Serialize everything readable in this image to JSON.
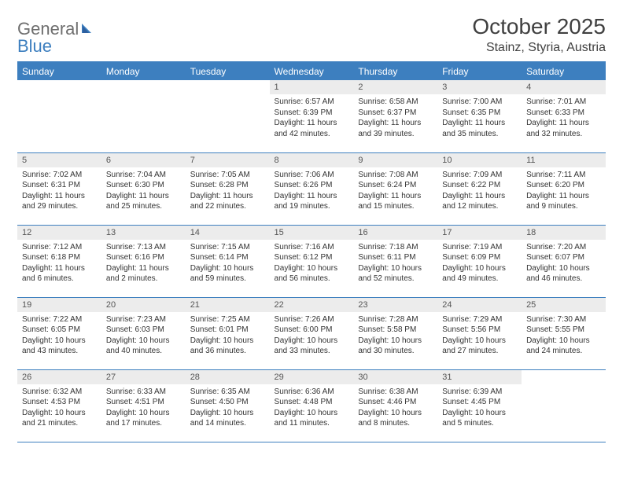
{
  "logo": {
    "word1": "General",
    "word2": "Blue",
    "text_color": "#6e6e6e",
    "accent_color": "#3d7fbf"
  },
  "title": "October 2025",
  "location": "Stainz, Styria, Austria",
  "colors": {
    "header_bg": "#3d7fbf",
    "header_text": "#ffffff",
    "daynum_bg": "#ececec",
    "rule": "#3d7fbf",
    "body_text": "#333333"
  },
  "day_headers": [
    "Sunday",
    "Monday",
    "Tuesday",
    "Wednesday",
    "Thursday",
    "Friday",
    "Saturday"
  ],
  "weeks": [
    [
      {
        "n": "",
        "sr": "",
        "ss": "",
        "dl": ""
      },
      {
        "n": "",
        "sr": "",
        "ss": "",
        "dl": ""
      },
      {
        "n": "",
        "sr": "",
        "ss": "",
        "dl": ""
      },
      {
        "n": "1",
        "sr": "Sunrise: 6:57 AM",
        "ss": "Sunset: 6:39 PM",
        "dl": "Daylight: 11 hours and 42 minutes."
      },
      {
        "n": "2",
        "sr": "Sunrise: 6:58 AM",
        "ss": "Sunset: 6:37 PM",
        "dl": "Daylight: 11 hours and 39 minutes."
      },
      {
        "n": "3",
        "sr": "Sunrise: 7:00 AM",
        "ss": "Sunset: 6:35 PM",
        "dl": "Daylight: 11 hours and 35 minutes."
      },
      {
        "n": "4",
        "sr": "Sunrise: 7:01 AM",
        "ss": "Sunset: 6:33 PM",
        "dl": "Daylight: 11 hours and 32 minutes."
      }
    ],
    [
      {
        "n": "5",
        "sr": "Sunrise: 7:02 AM",
        "ss": "Sunset: 6:31 PM",
        "dl": "Daylight: 11 hours and 29 minutes."
      },
      {
        "n": "6",
        "sr": "Sunrise: 7:04 AM",
        "ss": "Sunset: 6:30 PM",
        "dl": "Daylight: 11 hours and 25 minutes."
      },
      {
        "n": "7",
        "sr": "Sunrise: 7:05 AM",
        "ss": "Sunset: 6:28 PM",
        "dl": "Daylight: 11 hours and 22 minutes."
      },
      {
        "n": "8",
        "sr": "Sunrise: 7:06 AM",
        "ss": "Sunset: 6:26 PM",
        "dl": "Daylight: 11 hours and 19 minutes."
      },
      {
        "n": "9",
        "sr": "Sunrise: 7:08 AM",
        "ss": "Sunset: 6:24 PM",
        "dl": "Daylight: 11 hours and 15 minutes."
      },
      {
        "n": "10",
        "sr": "Sunrise: 7:09 AM",
        "ss": "Sunset: 6:22 PM",
        "dl": "Daylight: 11 hours and 12 minutes."
      },
      {
        "n": "11",
        "sr": "Sunrise: 7:11 AM",
        "ss": "Sunset: 6:20 PM",
        "dl": "Daylight: 11 hours and 9 minutes."
      }
    ],
    [
      {
        "n": "12",
        "sr": "Sunrise: 7:12 AM",
        "ss": "Sunset: 6:18 PM",
        "dl": "Daylight: 11 hours and 6 minutes."
      },
      {
        "n": "13",
        "sr": "Sunrise: 7:13 AM",
        "ss": "Sunset: 6:16 PM",
        "dl": "Daylight: 11 hours and 2 minutes."
      },
      {
        "n": "14",
        "sr": "Sunrise: 7:15 AM",
        "ss": "Sunset: 6:14 PM",
        "dl": "Daylight: 10 hours and 59 minutes."
      },
      {
        "n": "15",
        "sr": "Sunrise: 7:16 AM",
        "ss": "Sunset: 6:12 PM",
        "dl": "Daylight: 10 hours and 56 minutes."
      },
      {
        "n": "16",
        "sr": "Sunrise: 7:18 AM",
        "ss": "Sunset: 6:11 PM",
        "dl": "Daylight: 10 hours and 52 minutes."
      },
      {
        "n": "17",
        "sr": "Sunrise: 7:19 AM",
        "ss": "Sunset: 6:09 PM",
        "dl": "Daylight: 10 hours and 49 minutes."
      },
      {
        "n": "18",
        "sr": "Sunrise: 7:20 AM",
        "ss": "Sunset: 6:07 PM",
        "dl": "Daylight: 10 hours and 46 minutes."
      }
    ],
    [
      {
        "n": "19",
        "sr": "Sunrise: 7:22 AM",
        "ss": "Sunset: 6:05 PM",
        "dl": "Daylight: 10 hours and 43 minutes."
      },
      {
        "n": "20",
        "sr": "Sunrise: 7:23 AM",
        "ss": "Sunset: 6:03 PM",
        "dl": "Daylight: 10 hours and 40 minutes."
      },
      {
        "n": "21",
        "sr": "Sunrise: 7:25 AM",
        "ss": "Sunset: 6:01 PM",
        "dl": "Daylight: 10 hours and 36 minutes."
      },
      {
        "n": "22",
        "sr": "Sunrise: 7:26 AM",
        "ss": "Sunset: 6:00 PM",
        "dl": "Daylight: 10 hours and 33 minutes."
      },
      {
        "n": "23",
        "sr": "Sunrise: 7:28 AM",
        "ss": "Sunset: 5:58 PM",
        "dl": "Daylight: 10 hours and 30 minutes."
      },
      {
        "n": "24",
        "sr": "Sunrise: 7:29 AM",
        "ss": "Sunset: 5:56 PM",
        "dl": "Daylight: 10 hours and 27 minutes."
      },
      {
        "n": "25",
        "sr": "Sunrise: 7:30 AM",
        "ss": "Sunset: 5:55 PM",
        "dl": "Daylight: 10 hours and 24 minutes."
      }
    ],
    [
      {
        "n": "26",
        "sr": "Sunrise: 6:32 AM",
        "ss": "Sunset: 4:53 PM",
        "dl": "Daylight: 10 hours and 21 minutes."
      },
      {
        "n": "27",
        "sr": "Sunrise: 6:33 AM",
        "ss": "Sunset: 4:51 PM",
        "dl": "Daylight: 10 hours and 17 minutes."
      },
      {
        "n": "28",
        "sr": "Sunrise: 6:35 AM",
        "ss": "Sunset: 4:50 PM",
        "dl": "Daylight: 10 hours and 14 minutes."
      },
      {
        "n": "29",
        "sr": "Sunrise: 6:36 AM",
        "ss": "Sunset: 4:48 PM",
        "dl": "Daylight: 10 hours and 11 minutes."
      },
      {
        "n": "30",
        "sr": "Sunrise: 6:38 AM",
        "ss": "Sunset: 4:46 PM",
        "dl": "Daylight: 10 hours and 8 minutes."
      },
      {
        "n": "31",
        "sr": "Sunrise: 6:39 AM",
        "ss": "Sunset: 4:45 PM",
        "dl": "Daylight: 10 hours and 5 minutes."
      },
      {
        "n": "",
        "sr": "",
        "ss": "",
        "dl": ""
      }
    ]
  ]
}
